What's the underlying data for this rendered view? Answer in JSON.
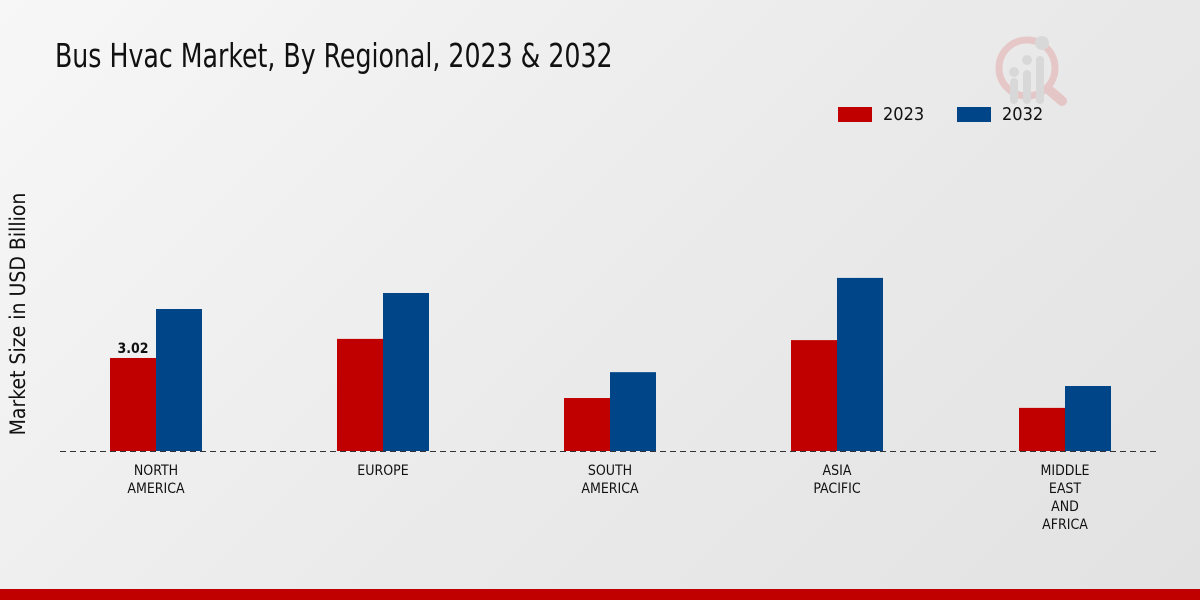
{
  "chart_data": {
    "type": "bar",
    "title": "Bus Hvac Market, By Regional, 2023 & 2032",
    "xlabel": "",
    "ylabel": "Market Size in USD Billion",
    "categories": [
      [
        "NORTH",
        "AMERICA"
      ],
      [
        "EUROPE"
      ],
      [
        "SOUTH",
        "AMERICA"
      ],
      [
        "ASIA",
        "PACIFIC"
      ],
      [
        "MIDDLE",
        "EAST",
        "AND",
        "AFRICA"
      ]
    ],
    "series": [
      {
        "name": "2023",
        "color": "#c00000",
        "values": [
          3.02,
          3.64,
          1.72,
          3.6,
          1.4
        ]
      },
      {
        "name": "2032",
        "color": "#004587",
        "values": [
          4.61,
          5.13,
          2.56,
          5.62,
          2.11
        ]
      }
    ],
    "data_labels": [
      {
        "series": 0,
        "index": 0,
        "text": "3.02"
      }
    ],
    "legend_position": "top-right",
    "grid": false
  }
}
